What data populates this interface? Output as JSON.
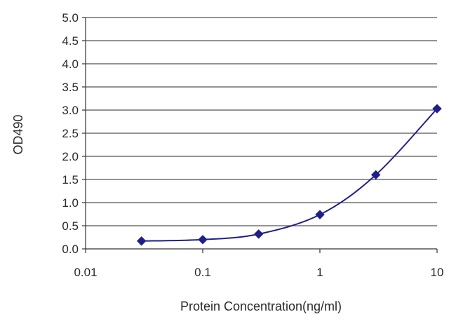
{
  "chart_data": {
    "type": "line",
    "title": "",
    "xlabel": "Protein Concentration(ng/ml)",
    "ylabel": "OD490",
    "x_scale": "log",
    "xlim": [
      0.01,
      10
    ],
    "ylim": [
      0,
      5
    ],
    "x_ticks": [
      0.01,
      0.1,
      1,
      10
    ],
    "x_tick_labels": [
      "0.01",
      "0.1",
      "1",
      "10"
    ],
    "y_ticks": [
      0,
      0.5,
      1,
      1.5,
      2,
      2.5,
      3,
      3.5,
      4,
      4.5,
      5
    ],
    "y_tick_labels": [
      "0.0",
      "0.5",
      "1.0",
      "1.5",
      "2.0",
      "2.5",
      "3.0",
      "3.5",
      "4.0",
      "4.5",
      "5.0"
    ],
    "grid": "horizontal",
    "legend": "none",
    "series": [
      {
        "x": [
          0.03,
          0.1,
          0.3,
          1,
          3,
          10
        ],
        "y": [
          0.17,
          0.2,
          0.32,
          0.74,
          1.6,
          3.03
        ],
        "marker": "diamond",
        "color": "#1f1f8c"
      }
    ],
    "colors": {
      "series": "#1f1f8c",
      "grid": "#555555",
      "axis": "#333333",
      "text": "#2a2a2a"
    }
  }
}
